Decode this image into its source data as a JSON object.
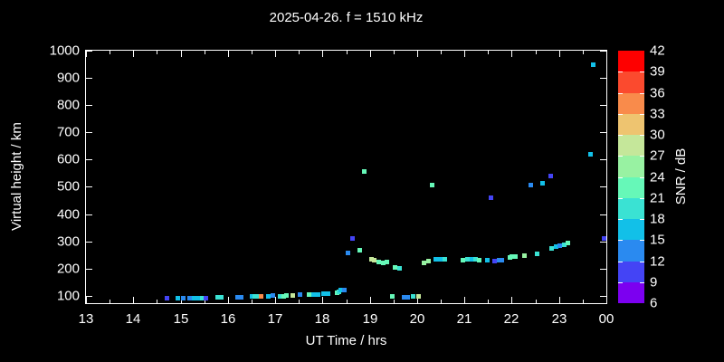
{
  "title": "2025-04-26. f = 1510 kHz",
  "styles": {
    "background": "#000000",
    "foreground": "#ffffff"
  },
  "chart_data": {
    "type": "scatter",
    "title": "2025-04-26. f = 1510 kHz",
    "xlabel": "UT Time / hrs",
    "ylabel": "Virtual height / km",
    "colorbar_label": "SNR / dB",
    "grid": false,
    "xlim": [
      13,
      24
    ],
    "ylim": [
      73,
      1000
    ],
    "x_major_ticks": [
      {
        "value": 13,
        "label": "13"
      },
      {
        "value": 14,
        "label": "14"
      },
      {
        "value": 15,
        "label": "15"
      },
      {
        "value": 16,
        "label": "16"
      },
      {
        "value": 17,
        "label": "17"
      },
      {
        "value": 18,
        "label": "18"
      },
      {
        "value": 19,
        "label": "19"
      },
      {
        "value": 20,
        "label": "20"
      },
      {
        "value": 21,
        "label": "21"
      },
      {
        "value": 22,
        "label": "22"
      },
      {
        "value": 23,
        "label": "23"
      },
      {
        "value": 24,
        "label": "00"
      }
    ],
    "x_minor_ticks": [
      13.5,
      14.5,
      15.5,
      16.5,
      17.5,
      18.5,
      19.5,
      20.5,
      21.5,
      22.5,
      23.5
    ],
    "y_ticks": [
      100,
      200,
      300,
      400,
      500,
      600,
      700,
      800,
      900,
      1000
    ],
    "colorbar": {
      "min": 6,
      "max": 42,
      "step": 3,
      "tick_labels_top_to_bottom": [
        "42",
        "39",
        "36",
        "33",
        "30",
        "27",
        "24",
        "21",
        "18",
        "15",
        "12",
        "9",
        "6"
      ],
      "colors_low_to_high": [
        "#7c00f0",
        "#4444f5",
        "#2a8af0",
        "#12c0e8",
        "#3ae2d3",
        "#66f8b8",
        "#98f2a2",
        "#c5e79a",
        "#eec470",
        "#f98b4b",
        "#fb4a2e",
        "#fe0000"
      ]
    },
    "points_format": [
      "ut_hours",
      "virtual_height_km",
      "snr_db"
    ],
    "points": [
      [
        14.7,
        92,
        10.5
      ],
      [
        14.93,
        92,
        16.5
      ],
      [
        15.05,
        92,
        13.5
      ],
      [
        15.18,
        92,
        13.5
      ],
      [
        15.27,
        92,
        16.5
      ],
      [
        15.35,
        92,
        16.5
      ],
      [
        15.44,
        93,
        19.5
      ],
      [
        15.53,
        92,
        10.5
      ],
      [
        15.77,
        95,
        19.5
      ],
      [
        15.85,
        97,
        19.5
      ],
      [
        16.2,
        97,
        13.5
      ],
      [
        16.28,
        95,
        13.5
      ],
      [
        16.5,
        100,
        16.5
      ],
      [
        16.55,
        100,
        19.5
      ],
      [
        16.61,
        100,
        19.5
      ],
      [
        16.7,
        98,
        34.5
      ],
      [
        16.84,
        100,
        16.5
      ],
      [
        16.94,
        102,
        13.5
      ],
      [
        17.1,
        101,
        19.5
      ],
      [
        17.17,
        101,
        22.5
      ],
      [
        17.23,
        102,
        22.5
      ],
      [
        17.37,
        104,
        28.5
      ],
      [
        17.51,
        106,
        13.5
      ],
      [
        17.7,
        105,
        22.5
      ],
      [
        17.8,
        106,
        16.5
      ],
      [
        17.89,
        107,
        16.5
      ],
      [
        18.01,
        109,
        16.5
      ],
      [
        18.1,
        110,
        16.5
      ],
      [
        18.29,
        113,
        22.5
      ],
      [
        18.33,
        116,
        19.5
      ],
      [
        18.38,
        122,
        16.5
      ],
      [
        18.45,
        124,
        13.5
      ],
      [
        18.53,
        258,
        13.5
      ],
      [
        18.62,
        312,
        10.5
      ],
      [
        18.78,
        270,
        22.5
      ],
      [
        18.87,
        558,
        22.5
      ],
      [
        19.02,
        237,
        28.5
      ],
      [
        19.08,
        233,
        28.5
      ],
      [
        19.18,
        227,
        22.5
      ],
      [
        19.27,
        224,
        22.5
      ],
      [
        19.35,
        227,
        22.5
      ],
      [
        19.47,
        99,
        22.5
      ],
      [
        19.52,
        207,
        22.5
      ],
      [
        19.62,
        204,
        19.5
      ],
      [
        19.71,
        97,
        13.5
      ],
      [
        19.79,
        97,
        13.5
      ],
      [
        19.9,
        99,
        19.5
      ],
      [
        20.02,
        100,
        28.5
      ],
      [
        20.13,
        224,
        25.5
      ],
      [
        20.23,
        230,
        25.5
      ],
      [
        20.3,
        508,
        22.5
      ],
      [
        20.38,
        237,
        16.5
      ],
      [
        20.48,
        237,
        16.5
      ],
      [
        20.57,
        235,
        19.5
      ],
      [
        20.95,
        233,
        22.5
      ],
      [
        21.05,
        235,
        19.5
      ],
      [
        21.15,
        235,
        16.5
      ],
      [
        21.22,
        235,
        19.5
      ],
      [
        21.3,
        233,
        22.5
      ],
      [
        21.48,
        233,
        16.5
      ],
      [
        21.55,
        462,
        10.5
      ],
      [
        21.63,
        230,
        10.5
      ],
      [
        21.72,
        231,
        13.5
      ],
      [
        21.78,
        232,
        13.5
      ],
      [
        21.95,
        243,
        22.5
      ],
      [
        22.0,
        245,
        22.5
      ],
      [
        22.07,
        245,
        22.5
      ],
      [
        22.26,
        248,
        25.5
      ],
      [
        22.39,
        508,
        13.5
      ],
      [
        22.52,
        255,
        19.5
      ],
      [
        22.64,
        515,
        16.5
      ],
      [
        22.81,
        542,
        10.5
      ],
      [
        22.83,
        276,
        19.5
      ],
      [
        22.93,
        282,
        16.5
      ],
      [
        23.01,
        286,
        13.5
      ],
      [
        23.1,
        289,
        19.5
      ],
      [
        23.18,
        295,
        22.5
      ],
      [
        23.65,
        620,
        16.5
      ],
      [
        23.71,
        950,
        16.5
      ],
      [
        23.95,
        312,
        10.5
      ]
    ]
  }
}
